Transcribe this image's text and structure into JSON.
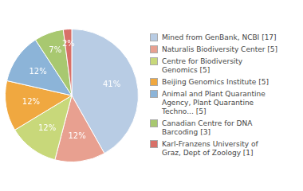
{
  "chart_data": {
    "type": "pie",
    "categories": [
      "Mined from GenBank, NCBI [17]",
      "Naturalis Biodiversity Center [5]",
      "Centre for Biodiversity\nGenomics [5]",
      "Beijing Genomics Institute [5]",
      "Animal and Plant Quarantine\nAgency, Plant Quarantine\nTechno... [5]",
      "Canadian Centre for DNA\nBarcoding [3]",
      "Karl-Franzens University of\nGraz, Dept of Zoology [1]"
    ],
    "values": [
      41,
      12,
      12,
      12,
      12,
      7,
      2
    ],
    "value_labels": [
      "41%",
      "12%",
      "12%",
      "12%",
      "12%",
      "7%",
      "2%"
    ],
    "colors": [
      "#b8cce4",
      "#e8a090",
      "#c8d87a",
      "#f0a840",
      "#8cb4d8",
      "#a8c870",
      "#d87068"
    ],
    "data_labels": true,
    "legend": "right"
  }
}
